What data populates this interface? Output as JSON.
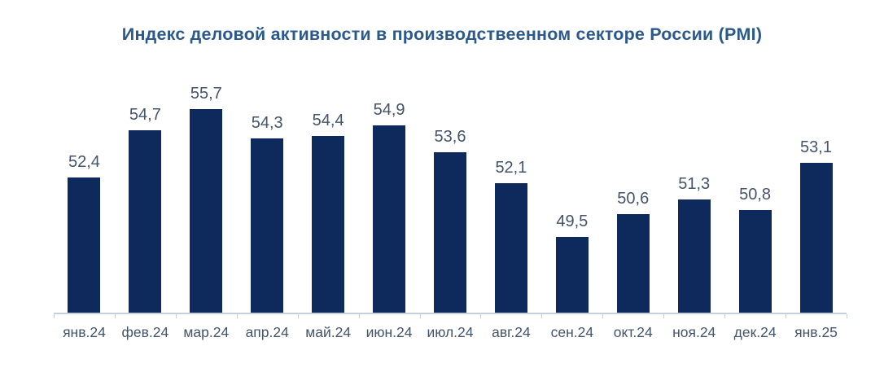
{
  "colors": {
    "bar": "#0E2A5C",
    "title": "#2C598C",
    "labels": "#44546A",
    "axis": "#C6CFDC",
    "background": "#FFFFFF"
  },
  "chart_data": {
    "type": "bar",
    "title": "Индекс деловой активности в производствеенном секторе России (PMI)",
    "categories": [
      "янв.24",
      "фев.24",
      "мар.24",
      "апр.24",
      "май.24",
      "июн.24",
      "июл.24",
      "авг.24",
      "сен.24",
      "окт.24",
      "ноя.24",
      "дек.24",
      "янв.25"
    ],
    "values": [
      52.4,
      54.7,
      55.7,
      54.3,
      54.4,
      54.9,
      53.6,
      52.1,
      49.5,
      50.6,
      51.3,
      50.8,
      53.1
    ],
    "value_labels": [
      "52,4",
      "54,7",
      "55,7",
      "54,3",
      "54,4",
      "54,9",
      "53,6",
      "52,1",
      "49,5",
      "50,6",
      "51,3",
      "50,8",
      "53,1"
    ],
    "xlabel": "",
    "ylabel": "",
    "ylim": [
      45.8,
      57.1
    ],
    "grid": false,
    "legend": "none",
    "data_labels": true,
    "decimal_separator": ","
  }
}
